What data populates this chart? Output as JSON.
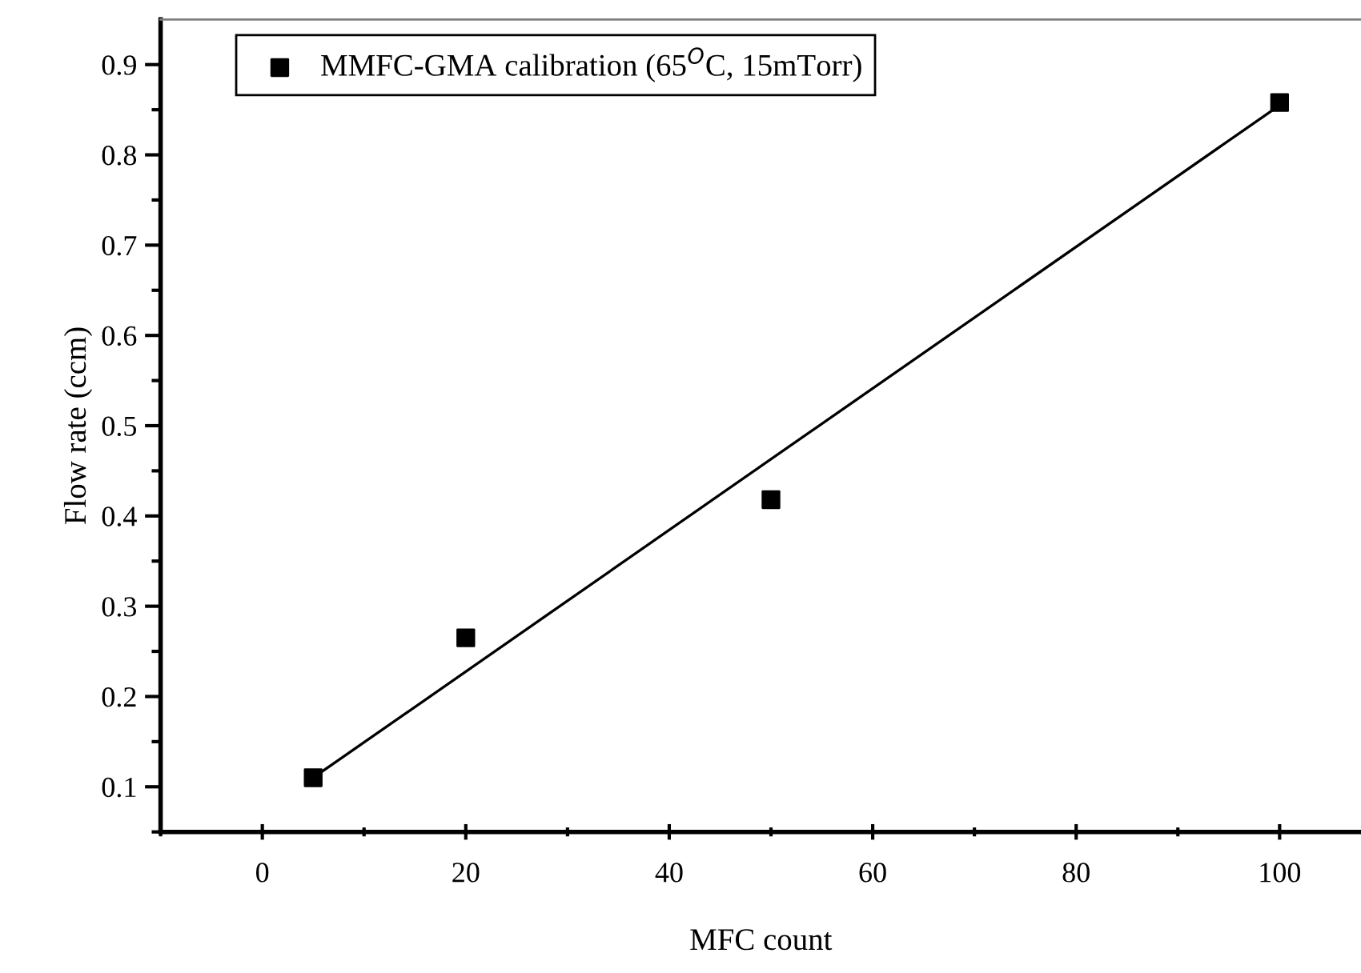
{
  "chart_data": {
    "type": "scatter",
    "xlabel": "MFC count",
    "ylabel": "Flow rate (ccm)",
    "series": [
      {
        "name": "MMFC-GMA calibration (65$^{O}$C, 15mTorr)",
        "color": "#000000",
        "marker": "square",
        "x": [
          5,
          20,
          50,
          100
        ],
        "values": [
          0.11,
          0.265,
          0.418,
          0.858
        ]
      },
      {
        "type": "line",
        "color": "#000000",
        "marker": "none",
        "line_style": "solid",
        "x": [
          5,
          100
        ],
        "values": [
          0.11,
          0.855
        ]
      }
    ],
    "xlim": [
      -10,
      108
    ],
    "ylim": [
      0.05,
      0.95
    ],
    "xticks": [
      {
        "value": -10,
        "label": null
      },
      0,
      {
        "value": 10,
        "label": null
      },
      20,
      {
        "value": 30,
        "label": null
      },
      40,
      {
        "value": 50,
        "label": null
      },
      60,
      {
        "value": 70,
        "label": null
      },
      80,
      {
        "value": 90,
        "label": null
      },
      100
    ],
    "yticks": [
      {
        "value": 0.05,
        "label": null
      },
      0.1,
      {
        "value": 0.15,
        "label": null
      },
      0.2,
      {
        "value": 0.25,
        "label": null
      },
      0.3,
      {
        "value": 0.35,
        "label": null
      },
      0.4,
      {
        "value": 0.45,
        "label": null
      },
      0.5,
      {
        "value": 0.55,
        "label": null
      },
      0.6,
      {
        "value": 0.65,
        "label": null
      },
      0.7,
      {
        "value": 0.75,
        "label": null
      },
      0.8,
      {
        "value": 0.85,
        "label": null
      },
      0.9
    ],
    "grid": false,
    "legend": "top left"
  }
}
